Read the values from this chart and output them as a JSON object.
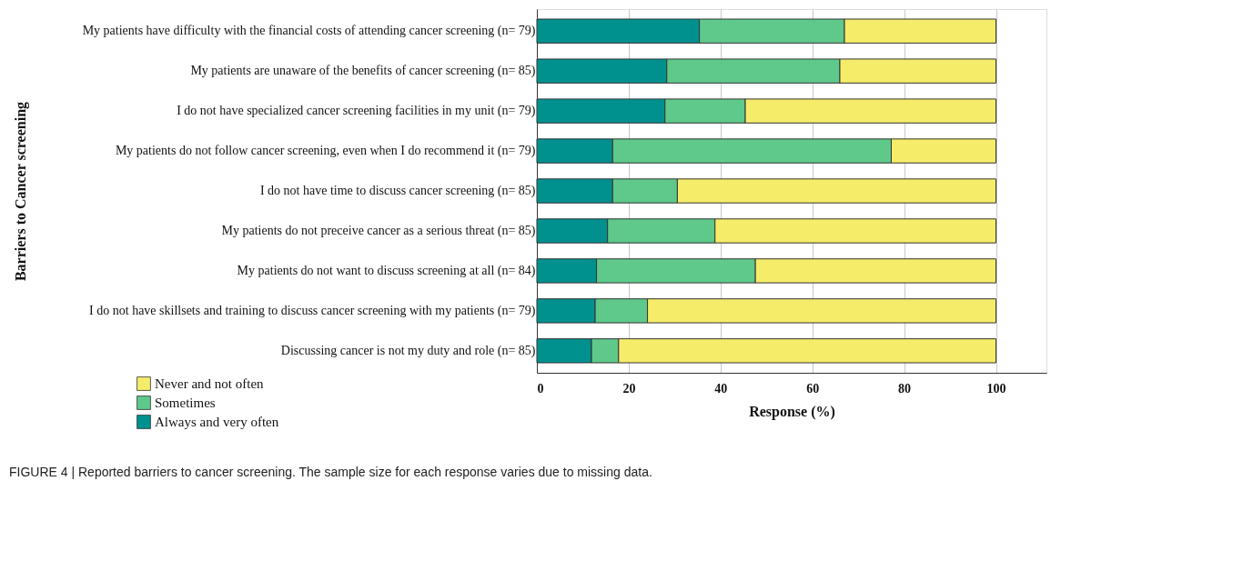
{
  "chart_data": {
    "type": "bar",
    "orientation": "horizontal",
    "stacked": true,
    "categories": [
      "My patients have difficulty with the financial costs of attending cancer screening (n= 79)",
      "My patients are unaware of the benefits of cancer screening (n= 85)",
      "I do not have specialized cancer screening facilities in my unit (n= 79)",
      "My patients do not follow cancer screening, even when I do recommend it (n= 79)",
      "I do not have time to discuss cancer screening (n= 85)",
      "My patients do not preceive cancer as a serious threat (n= 85)",
      "My patients do not want to discuss screening at all (n= 84)",
      "I do not have skillsets and training to discuss cancer screening with my patients (n= 79)",
      "Discussing cancer is not my duty and role (n= 85)"
    ],
    "series": [
      {
        "name": "Always and very often",
        "color": "#00918f",
        "values": [
          35.4,
          28.3,
          27.9,
          16.5,
          16.5,
          15.4,
          13.0,
          12.7,
          11.9
        ]
      },
      {
        "name": "Sometimes",
        "color": "#5ec98a",
        "values": [
          31.6,
          37.7,
          17.5,
          60.7,
          14.1,
          23.4,
          34.6,
          11.4,
          5.9
        ]
      },
      {
        "name": "Never and not often",
        "color": "#f5ed6a",
        "values": [
          33.0,
          34.0,
          54.6,
          22.8,
          69.4,
          61.2,
          52.4,
          75.9,
          82.2
        ]
      }
    ],
    "xlim": [
      0,
      111
    ],
    "xticks": [
      0,
      20,
      40,
      60,
      80,
      100
    ],
    "xlabel": "Response (%)",
    "ylabel": "Barriers to Cancer screening",
    "grid": "x",
    "legend": "bottom left",
    "annotations": [
      "FIGURE 4 | Reported barriers to cancer screening. The sample size for each response varies due to missing data."
    ]
  }
}
